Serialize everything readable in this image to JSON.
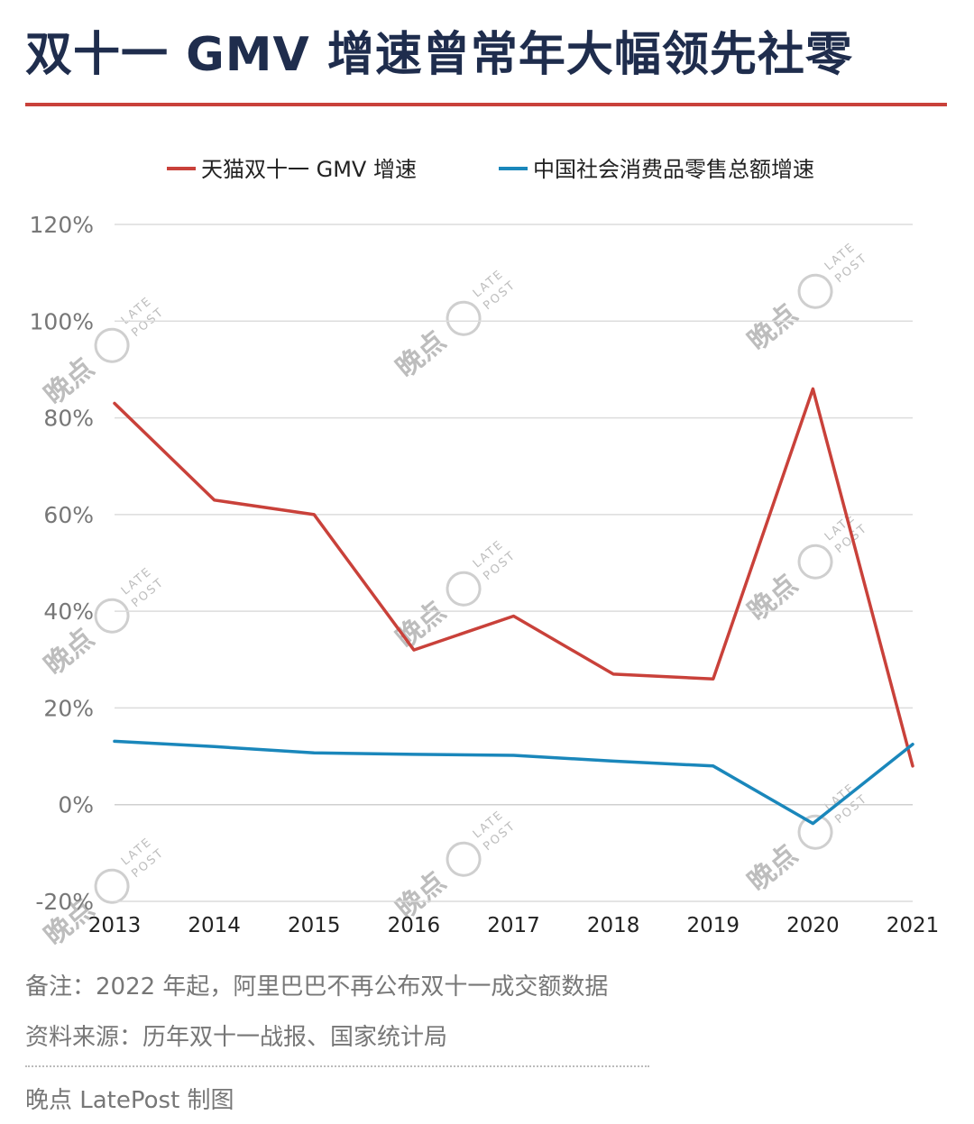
{
  "title": "双十一 GMV 增速曾常年大幅领先社零",
  "watermark": {
    "text": "晚点",
    "sub1": "LATE",
    "sub2": "POST"
  },
  "notes": {
    "remark": "备注：2022 年起，阿里巴巴不再公布双十一成交额数据",
    "source": "资料来源：历年双十一战报、国家统计局",
    "credit": "晚点 LatePost 制图"
  },
  "chart_data": {
    "type": "line",
    "x": [
      "2013",
      "2014",
      "2015",
      "2016",
      "2017",
      "2018",
      "2019",
      "2020",
      "2021"
    ],
    "series": [
      {
        "name": "天猫双十一 GMV 增速",
        "color": "#c9413a",
        "values": [
          83,
          63,
          60,
          32,
          39,
          27,
          26,
          86,
          8
        ]
      },
      {
        "name": "中国社会消费品零售总额增速",
        "color": "#1a87bb",
        "values": [
          13.1,
          12.0,
          10.7,
          10.4,
          10.2,
          9.0,
          8.0,
          -3.9,
          12.5
        ]
      }
    ],
    "ylim": [
      -20,
      120
    ],
    "yticks": [
      -20,
      0,
      20,
      40,
      60,
      80,
      100,
      120
    ],
    "ytick_labels": [
      "-20%",
      "0%",
      "20%",
      "40%",
      "60%",
      "80%",
      "100%",
      "120%"
    ],
    "grid": true,
    "legend": "top",
    "xlabel": "",
    "ylabel": ""
  }
}
